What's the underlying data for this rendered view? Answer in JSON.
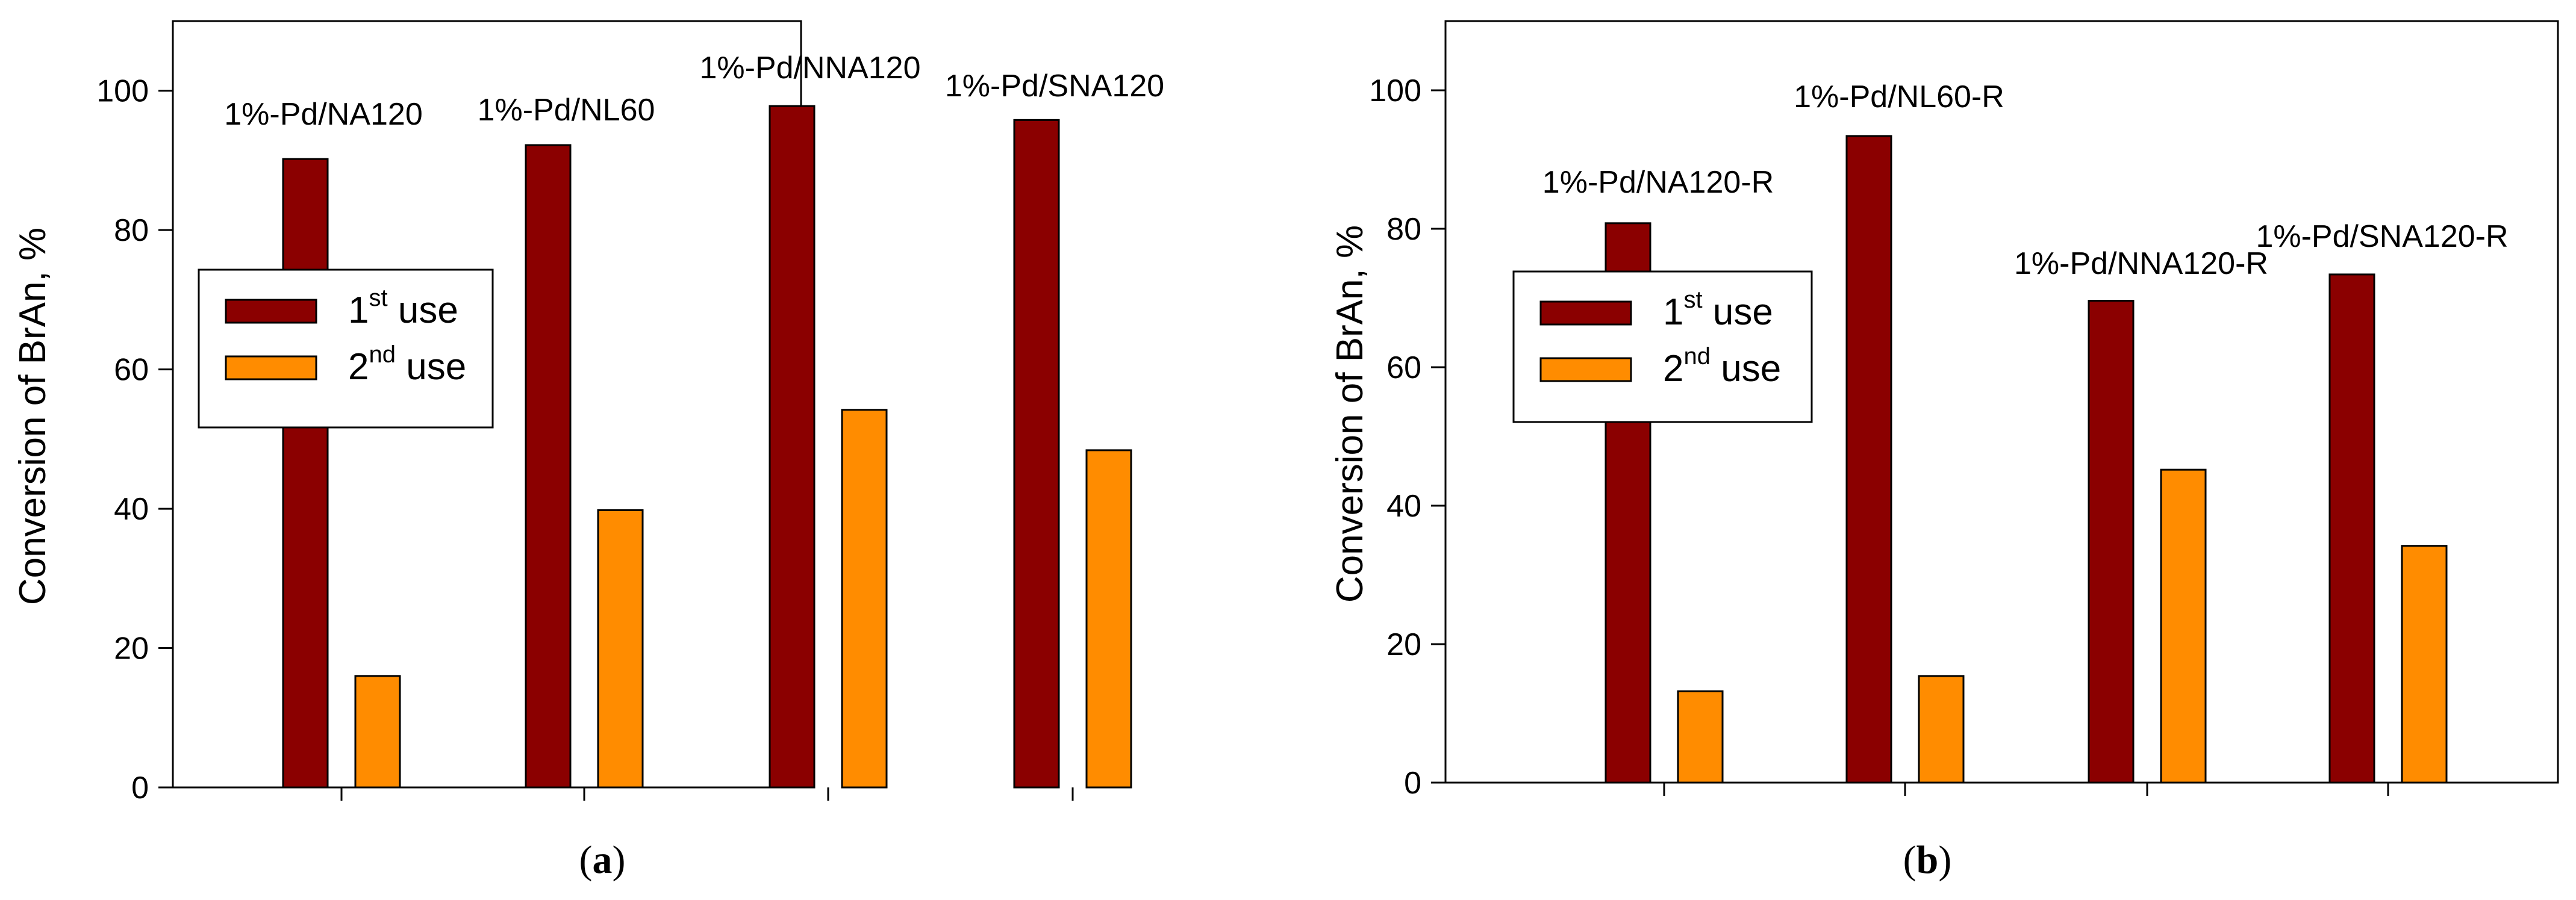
{
  "colors": {
    "first_use": "#8B0000",
    "second_use": "#FF8C00",
    "axis": "#000000",
    "background": "#FFFFFF"
  },
  "chart_data": [
    {
      "type": "bar",
      "panel_label": "a",
      "title": "",
      "xlabel": "",
      "ylabel": "Conversion of BrAn, %",
      "ylim": [
        0,
        110
      ],
      "yticks": [
        0,
        20,
        40,
        60,
        80,
        100
      ],
      "grid": false,
      "legend_position": "middle-left",
      "categories": [
        "1%-Pd/NA120",
        "1%-Pd/NL60",
        "1%-Pd/NNA120",
        "1%-Pd/SNA120"
      ],
      "series": [
        {
          "name": "1st use",
          "base": "1",
          "sup": "st",
          "rest": " use",
          "values": [
            90.2,
            92.2,
            97.8,
            95.8
          ]
        },
        {
          "name": "2nd use",
          "base": "2",
          "sup": "nd",
          "rest": " use",
          "values": [
            16.0,
            39.8,
            54.2,
            48.4
          ]
        }
      ]
    },
    {
      "type": "bar",
      "panel_label": "b",
      "title": "",
      "xlabel": "",
      "ylabel": "Conversion of BrAn, %",
      "ylim": [
        0,
        110
      ],
      "yticks": [
        0,
        20,
        40,
        60,
        80,
        100
      ],
      "grid": false,
      "legend_position": "middle-left",
      "categories": [
        "1%-Pd/NA120-R",
        "1%-Pd/NL60-R",
        "1%-Pd/NNA120-R",
        "1%-Pd/SNA120-R"
      ],
      "series": [
        {
          "name": "1st use",
          "base": "1",
          "sup": "st",
          "rest": " use",
          "values": [
            80.8,
            93.4,
            69.6,
            73.4
          ]
        },
        {
          "name": "2nd use",
          "base": "2",
          "sup": "nd",
          "rest": " use",
          "values": [
            13.2,
            15.4,
            45.2,
            34.2
          ]
        }
      ]
    }
  ]
}
